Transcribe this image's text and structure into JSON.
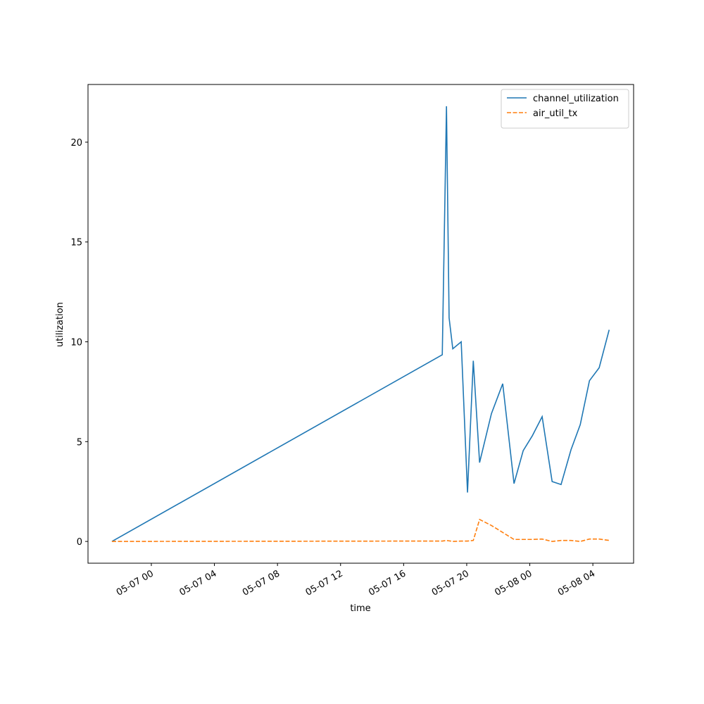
{
  "chart_data": {
    "type": "line",
    "x_label": "time",
    "y_label": "utilization",
    "x": [
      "05-06 21:30",
      "05-07 18:27",
      "05-07 18:43",
      "05-07 18:53",
      "05-07 19:07",
      "05-07 19:39",
      "05-07 20:03",
      "05-07 20:25",
      "05-07 20:49",
      "05-07 21:34",
      "05-07 22:17",
      "05-07 23:00",
      "05-07 23:35",
      "05-08 00:10",
      "05-08 00:47",
      "05-08 01:25",
      "05-08 01:59",
      "05-08 02:37",
      "05-08 03:12",
      "05-08 03:47",
      "05-08 04:24",
      "05-08 05:02"
    ],
    "series": [
      {
        "name": "channel_utilization",
        "color": "#1f77b4",
        "dash": "solid",
        "values": [
          0,
          9.35,
          21.8,
          11.2,
          9.65,
          10.0,
          2.45,
          9.05,
          3.95,
          6.4,
          7.9,
          2.9,
          4.55,
          5.3,
          6.25,
          3.0,
          2.85,
          4.6,
          5.85,
          8.05,
          8.7,
          10.6
        ]
      },
      {
        "name": "air_util_tx",
        "color": "#ff7f0e",
        "dash": "dashed",
        "values": [
          0,
          0.02,
          0.05,
          0.03,
          0.0,
          0.02,
          0.02,
          0.05,
          1.1,
          0.8,
          0.45,
          0.1,
          0.1,
          0.1,
          0.12,
          0.0,
          0.05,
          0.05,
          0.0,
          0.12,
          0.12,
          0.05
        ]
      }
    ],
    "xlim": [
      "05-06 19:59",
      "05-08 06:35"
    ],
    "xticks": [
      "05-07 00",
      "05-07 04",
      "05-07 08",
      "05-07 12",
      "05-07 16",
      "05-07 20",
      "05-08 00",
      "05-08 04"
    ],
    "ylim": [
      -1.09,
      22.89
    ],
    "yticks": [
      0,
      5,
      10,
      15,
      20
    ],
    "grid": false,
    "legend": "upper right"
  }
}
